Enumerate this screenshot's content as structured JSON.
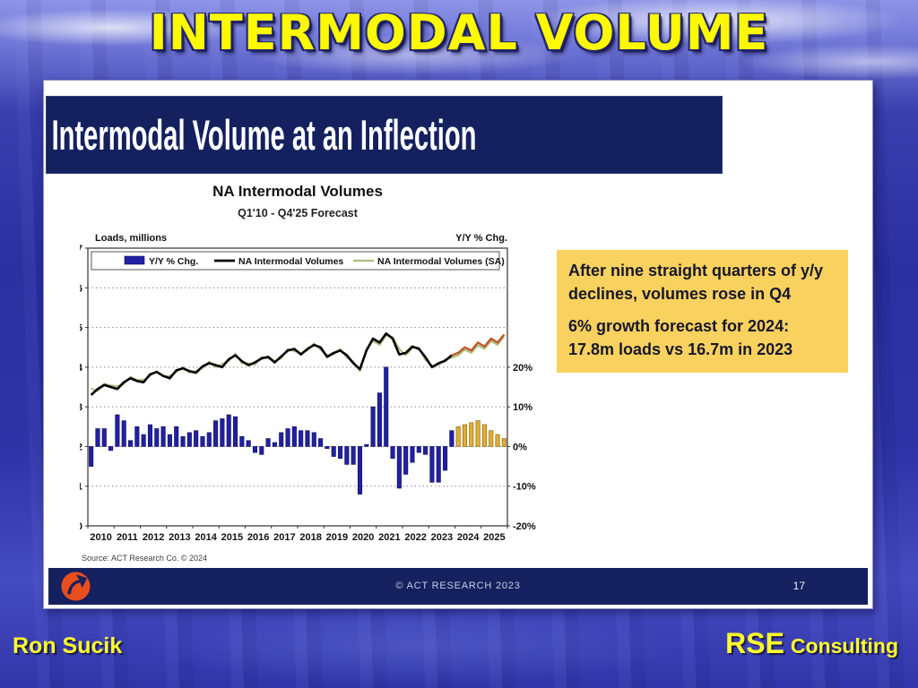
{
  "page": {
    "main_title": "INTERMODAL VOLUME",
    "presenter_name": "Ron Sucik",
    "brand_primary": "RSE",
    "brand_secondary": "Consulting"
  },
  "slide": {
    "header_title": "Intermodal Volume at an Inflection",
    "footer_copyright": "© ACT RESEARCH 2023",
    "page_number": "17",
    "source_note": "Source: ACT Research Co. © 2024",
    "logo_icon": "act-research-arrow-logo",
    "callout": {
      "background": "#f9d15e",
      "line1": "After nine straight quarters of y/y declines, volumes rose in Q4",
      "line2": "6% growth forecast for 2024: 17.8m loads vs 16.7m in 2023"
    }
  },
  "chart_data": {
    "type": "bar+line",
    "title": "NA Intermodal Volumes",
    "subtitle": "Q1'10 - Q4'25 Forecast",
    "left_axis": {
      "label": "Loads, millions",
      "min": 0,
      "max": 7,
      "ticks": [
        0,
        1,
        2,
        3,
        4,
        5,
        6,
        7
      ]
    },
    "right_axis": {
      "label": "Y/Y % Chg.",
      "tick_labels": [
        "20%",
        "10%",
        "0%",
        "-10%",
        "-20%"
      ],
      "tick_pcts": [
        20,
        10,
        0,
        -10,
        -20
      ],
      "zero_at_left_unit": 2,
      "pct_per_left_unit": 10
    },
    "x_years": [
      "2010",
      "2011",
      "2012",
      "2013",
      "2014",
      "2015",
      "2016",
      "2017",
      "2018",
      "2019",
      "2020",
      "2021",
      "2022",
      "2023",
      "2024",
      "2025"
    ],
    "quarters_per_year": 4,
    "forecast_start_index": 56,
    "grid_units": [
      1,
      2,
      3,
      4,
      5,
      6
    ],
    "legend": [
      {
        "label": "Y/Y % Chg.",
        "type": "bar",
        "color": "#2120a6"
      },
      {
        "label": "NA Intermodal Volumes",
        "type": "line",
        "color": "#000000"
      },
      {
        "label": "NA Intermodal Volumes (SA)",
        "type": "line",
        "color": "#a9c07c"
      }
    ],
    "series": {
      "yoy_pct_bars": {
        "name": "Y/Y % Chg.",
        "color": "#2120a6",
        "outline": "#15155e",
        "forecast_color": "#e0ae36",
        "forecast_outline": "#8a6a14",
        "values": [
          -5,
          4.5,
          4.5,
          -1,
          8,
          6.5,
          1.5,
          5,
          3,
          5.5,
          4.5,
          5,
          3,
          5,
          2.5,
          3.5,
          4,
          2.5,
          3.5,
          6.5,
          7,
          8,
          7.5,
          2.5,
          1.5,
          -1.5,
          -2,
          2,
          1,
          3.5,
          4.5,
          5,
          4,
          4,
          3.5,
          2,
          -0.5,
          -2.5,
          -3,
          -4.5,
          -4.5,
          -12,
          0.5,
          10,
          13.5,
          20,
          -3,
          -10.5,
          -7,
          -4,
          -1.5,
          -2,
          -9,
          -9,
          -6,
          4,
          5,
          5.5,
          6,
          6.5,
          5.5,
          4,
          3,
          2
        ]
      },
      "volumes_nsa": {
        "name": "NA Intermodal Volumes",
        "color": "#000000",
        "forecast_color": "#c2562b",
        "values": [
          3.3,
          3.45,
          3.55,
          3.5,
          3.45,
          3.62,
          3.72,
          3.65,
          3.62,
          3.82,
          3.88,
          3.78,
          3.72,
          3.92,
          3.97,
          3.9,
          3.86,
          4.02,
          4.1,
          4.05,
          4.0,
          4.2,
          4.3,
          4.15,
          4.05,
          4.12,
          4.22,
          4.26,
          4.12,
          4.27,
          4.42,
          4.46,
          4.32,
          4.46,
          4.56,
          4.5,
          4.26,
          4.36,
          4.42,
          4.3,
          4.1,
          3.95,
          4.42,
          4.72,
          4.62,
          4.85,
          4.72,
          4.32,
          4.36,
          4.52,
          4.46,
          4.25,
          4.0,
          4.1,
          4.16,
          4.3,
          4.36,
          4.5,
          4.42,
          4.62,
          4.52,
          4.72,
          4.62,
          4.82
        ]
      },
      "volumes_sa": {
        "name": "NA Intermodal Volumes (SA)",
        "color": "#a9c07c",
        "values": [
          3.46,
          3.4,
          3.58,
          3.54,
          3.52,
          3.58,
          3.76,
          3.68,
          3.68,
          3.78,
          3.9,
          3.76,
          3.78,
          3.88,
          4.0,
          3.86,
          3.9,
          3.98,
          4.14,
          4.0,
          4.08,
          4.16,
          4.34,
          4.1,
          4.1,
          4.06,
          4.26,
          4.22,
          4.16,
          4.22,
          4.46,
          4.4,
          4.36,
          4.42,
          4.6,
          4.44,
          4.3,
          4.32,
          4.46,
          4.24,
          4.14,
          3.9,
          4.46,
          4.66,
          4.56,
          4.8,
          4.76,
          4.46,
          4.3,
          4.48,
          4.5,
          4.18,
          4.04,
          4.05,
          4.2,
          4.24,
          4.3,
          4.44,
          4.36,
          4.55,
          4.46,
          4.66,
          4.56,
          4.78
        ]
      }
    }
  }
}
